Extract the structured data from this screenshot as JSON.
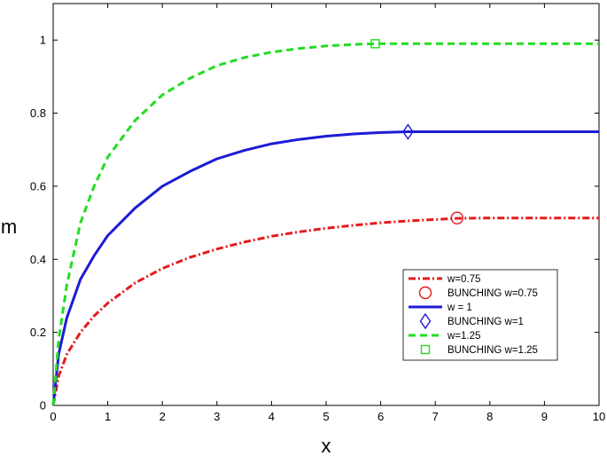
{
  "chart_data": {
    "type": "line",
    "title": "",
    "xlabel": "x",
    "ylabel": "m",
    "xlim": [
      0,
      10
    ],
    "ylim": [
      0,
      1.1
    ],
    "xticks": [
      "0",
      "1",
      "2",
      "3",
      "4",
      "5",
      "6",
      "7",
      "8",
      "9",
      "10"
    ],
    "yticks": [
      "0",
      "0.2",
      "0.4",
      "0.6",
      "0.8",
      "1"
    ],
    "grid": false,
    "legend_position": "lower-right",
    "series": [
      {
        "name": "w=0.75",
        "style": "dash-dot",
        "color": "#e41a1c",
        "x": [
          0,
          0.1,
          0.25,
          0.5,
          0.75,
          1,
          1.5,
          2,
          2.5,
          3,
          3.5,
          4,
          4.5,
          5,
          5.5,
          6,
          6.5,
          7,
          7.4,
          8,
          9,
          10
        ],
        "y": [
          0,
          0.08,
          0.14,
          0.2,
          0.245,
          0.28,
          0.335,
          0.375,
          0.405,
          0.428,
          0.447,
          0.463,
          0.475,
          0.485,
          0.493,
          0.5,
          0.505,
          0.509,
          0.512,
          0.513,
          0.513,
          0.513
        ]
      },
      {
        "name": "w = 1",
        "style": "solid",
        "color": "#1c1cd6",
        "x": [
          0,
          0.1,
          0.25,
          0.5,
          0.75,
          1,
          1.5,
          2,
          2.5,
          3,
          3.5,
          4,
          4.5,
          5,
          5.5,
          6,
          6.5,
          7,
          8,
          9,
          10
        ],
        "y": [
          0,
          0.14,
          0.24,
          0.345,
          0.41,
          0.465,
          0.54,
          0.6,
          0.64,
          0.675,
          0.698,
          0.716,
          0.728,
          0.737,
          0.743,
          0.747,
          0.749,
          0.749,
          0.749,
          0.749,
          0.749
        ]
      },
      {
        "name": "w=1.25",
        "style": "dashed",
        "color": "#22dd22",
        "x": [
          0,
          0.1,
          0.25,
          0.5,
          0.75,
          1,
          1.5,
          2,
          2.5,
          3,
          3.5,
          4,
          4.5,
          5,
          5.5,
          5.9,
          6.5,
          7,
          8,
          9,
          10
        ],
        "y": [
          0,
          0.18,
          0.33,
          0.5,
          0.6,
          0.68,
          0.78,
          0.85,
          0.895,
          0.93,
          0.952,
          0.967,
          0.977,
          0.984,
          0.988,
          0.99,
          0.99,
          0.99,
          0.99,
          0.99,
          0.99
        ]
      }
    ],
    "markers": [
      {
        "name": "BUNCHING w=0.75",
        "shape": "circle",
        "color": "#e41a1c",
        "x": 7.4,
        "y": 0.513
      },
      {
        "name": "BUNCHING w=1",
        "shape": "diamond",
        "color": "#1c1cd6",
        "x": 6.5,
        "y": 0.749
      },
      {
        "name": "BUNCHING w=1.25",
        "shape": "square",
        "color": "#22dd22",
        "x": 5.9,
        "y": 0.99
      }
    ],
    "legend": [
      {
        "label": "w=0.75",
        "kind": "line",
        "style": "dash-dot",
        "color": "#e41a1c"
      },
      {
        "label": "BUNCHING w=0.75",
        "kind": "marker",
        "shape": "circle",
        "color": "#e41a1c"
      },
      {
        "label": "w = 1",
        "kind": "line",
        "style": "solid",
        "color": "#1c1cd6"
      },
      {
        "label": "BUNCHING w=1",
        "kind": "marker",
        "shape": "diamond",
        "color": "#1c1cd6"
      },
      {
        "label": "w=1.25",
        "kind": "line",
        "style": "dashed",
        "color": "#22dd22"
      },
      {
        "label": "BUNCHING w=1.25",
        "kind": "marker",
        "shape": "square",
        "color": "#22dd22"
      }
    ]
  }
}
